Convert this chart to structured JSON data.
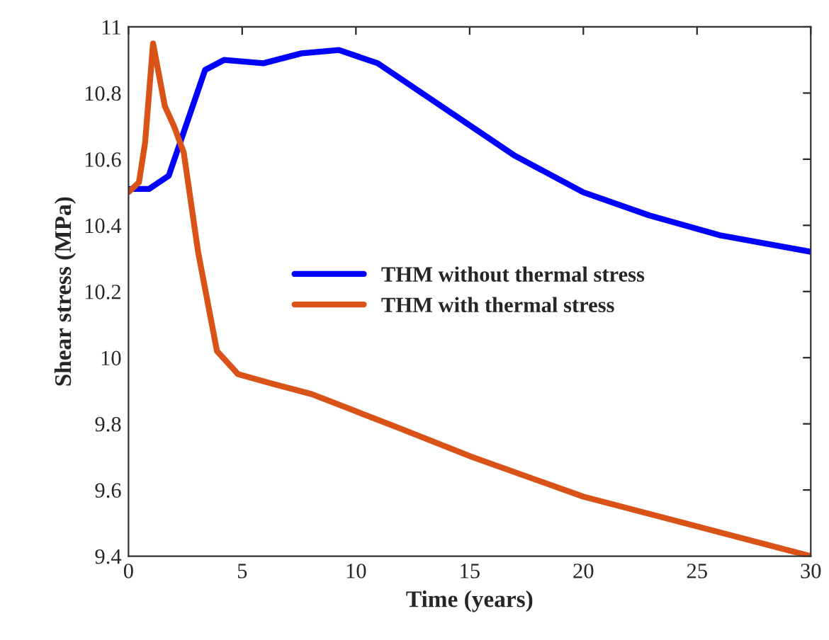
{
  "chart_data": {
    "type": "line",
    "xlabel": "Time (years)",
    "ylabel": "Shear stress (MPa)",
    "xlim": [
      0,
      30
    ],
    "xticks": [
      0,
      5,
      10,
      15,
      20,
      25,
      30
    ],
    "ylim": [
      9.4,
      11
    ],
    "yticks": [
      9.4,
      9.6,
      9.8,
      10,
      10.2,
      10.4,
      10.6,
      10.8,
      11
    ],
    "grid": false,
    "legend": "center",
    "line_style": "solid",
    "marker": "none",
    "series": [
      {
        "name": "THM without thermal stress",
        "color": "#0000ff",
        "x": [
          0,
          0.9,
          1.77,
          3.37,
          4.2,
          5.93,
          7.6,
          9.25,
          10.96,
          17.0,
          20.0,
          22.9,
          26.0,
          30
        ],
        "values": [
          10.51,
          10.51,
          10.55,
          10.87,
          10.9,
          10.89,
          10.92,
          10.93,
          10.89,
          10.61,
          10.5,
          10.43,
          10.37,
          10.32
        ]
      },
      {
        "name": "THM with thermal stress",
        "color": "#d95319",
        "x": [
          0,
          0.46,
          0.73,
          1.08,
          1.6,
          2.0,
          2.43,
          3.06,
          3.89,
          4.82,
          6.38,
          8.05,
          9.92,
          11.8,
          15.1,
          20.0,
          25.0,
          30
        ],
        "values": [
          10.5,
          10.53,
          10.65,
          10.95,
          10.76,
          10.7,
          10.62,
          10.32,
          10.02,
          9.95,
          9.92,
          9.89,
          9.84,
          9.79,
          9.7,
          9.58,
          9.49,
          9.4
        ]
      }
    ]
  }
}
